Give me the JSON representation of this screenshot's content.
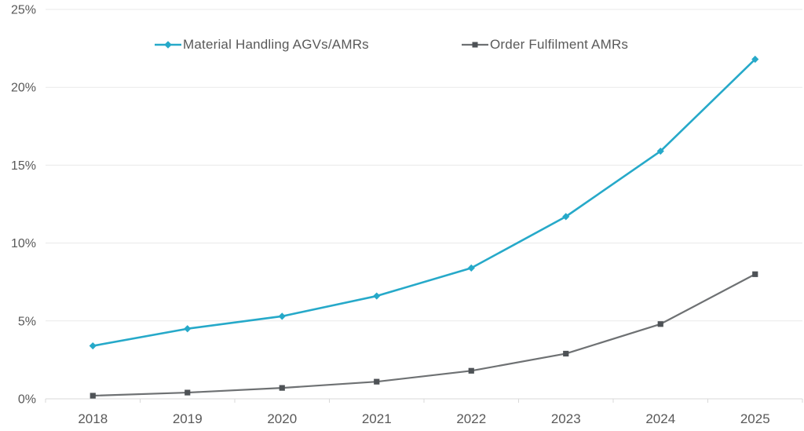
{
  "chart_data": {
    "type": "line",
    "title": "",
    "xlabel": "",
    "ylabel": "",
    "categories": [
      "2018",
      "2019",
      "2020",
      "2021",
      "2022",
      "2023",
      "2024",
      "2025"
    ],
    "series": [
      {
        "name": "Material Handling AGVs/AMRs",
        "values": [
          3.4,
          4.5,
          5.3,
          6.6,
          8.4,
          11.7,
          15.9,
          21.8
        ],
        "color": "#26A9C9",
        "marker": "diamond",
        "marker_color": "#26A9C9"
      },
      {
        "name": "Order Fulfilment AMRs",
        "values": [
          0.2,
          0.4,
          0.7,
          1.1,
          1.8,
          2.9,
          4.8,
          8.0
        ],
        "color": "#6E7173",
        "marker": "square",
        "marker_color": "#4E5256"
      }
    ],
    "ylim": [
      0,
      25
    ],
    "ytick_step": 5,
    "ytick_labels": [
      "0%",
      "5%",
      "10%",
      "15%",
      "20%",
      "25%"
    ],
    "ytick_suffix": "%",
    "grid": "horizontal",
    "legend_position": "top-inside",
    "colors": {
      "grid": "#E9E9E9",
      "axis": "#D9D9D9",
      "label": "#595959",
      "background": "#FFFFFF"
    }
  }
}
